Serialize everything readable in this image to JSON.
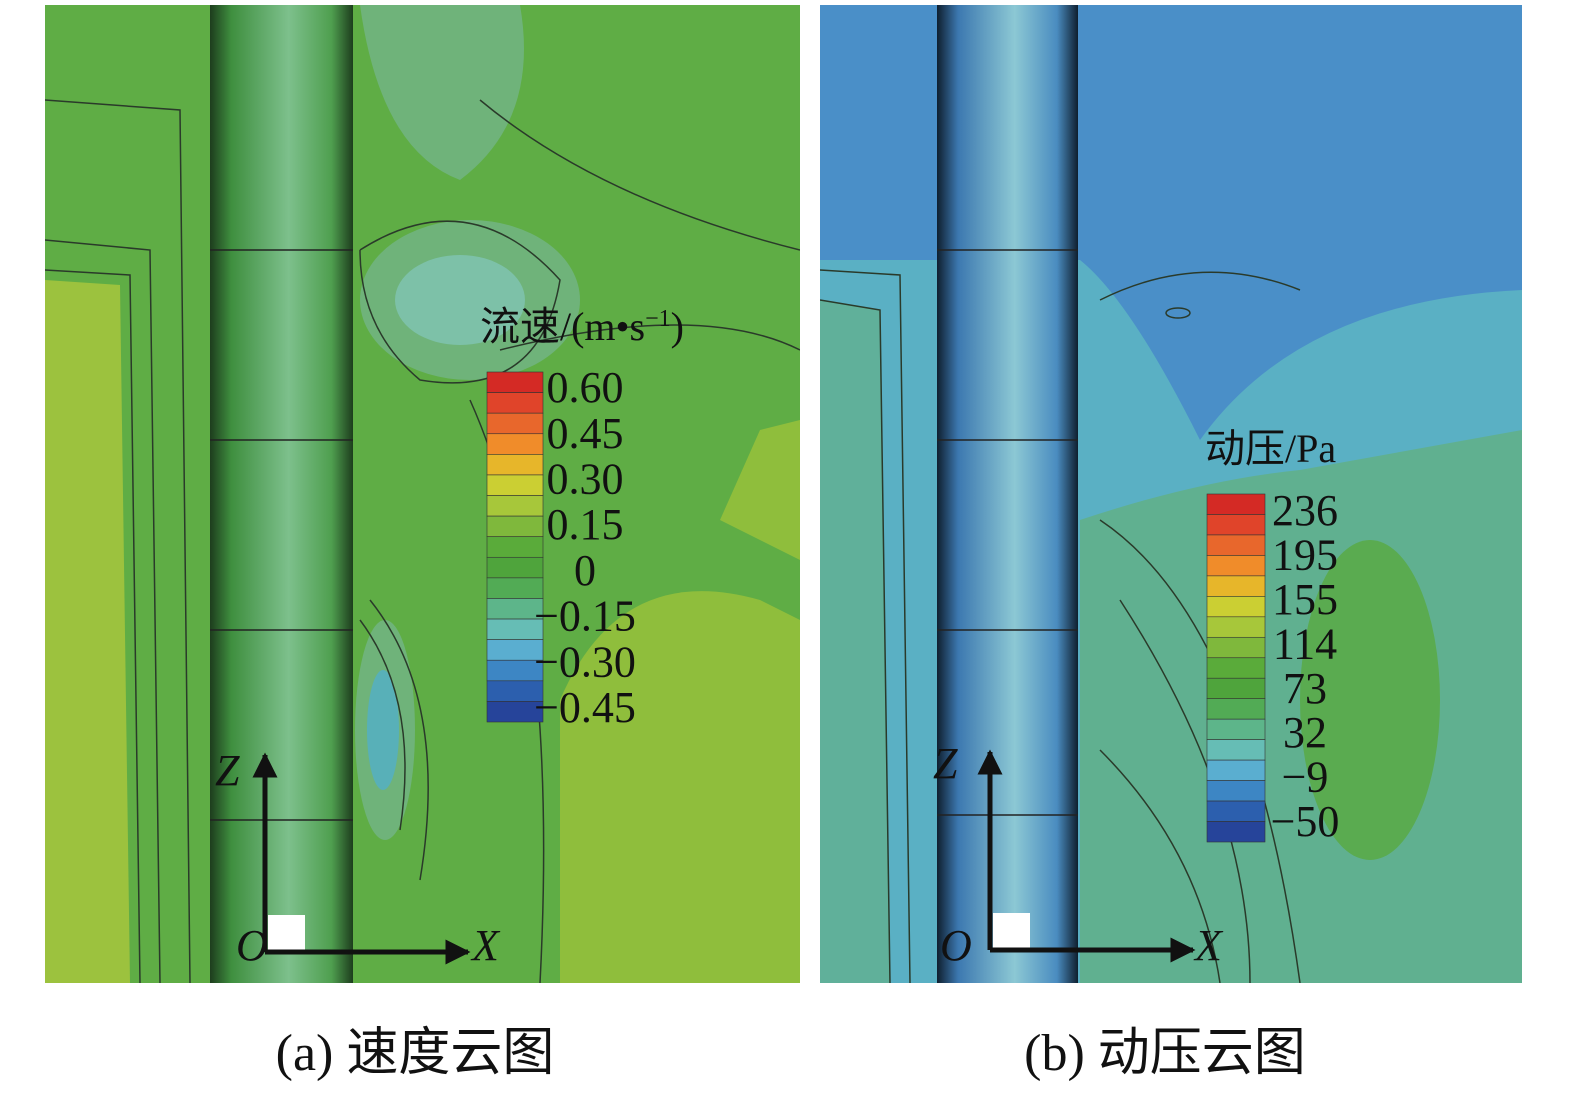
{
  "panels": [
    {
      "legend": {
        "title_parts": [
          "流速/(m•s",
          "−1",
          ")"
        ],
        "labels": [
          "0.60",
          "0.45",
          "0.30",
          "0.15",
          "0",
          "−0.15",
          "−0.30",
          "−0.45"
        ]
      },
      "axes": {
        "origin": "O",
        "z": "Z",
        "x": "X"
      },
      "caption": "(a) 速度云图"
    },
    {
      "legend": {
        "title_parts": [
          "动压/Pa"
        ],
        "labels": [
          "236",
          "195",
          "155",
          "114",
          "73",
          "32",
          "−9",
          "−50"
        ]
      },
      "axes": {
        "origin": "O",
        "z": "Z",
        "x": "X"
      },
      "caption": "(b) 动压云图"
    }
  ]
}
